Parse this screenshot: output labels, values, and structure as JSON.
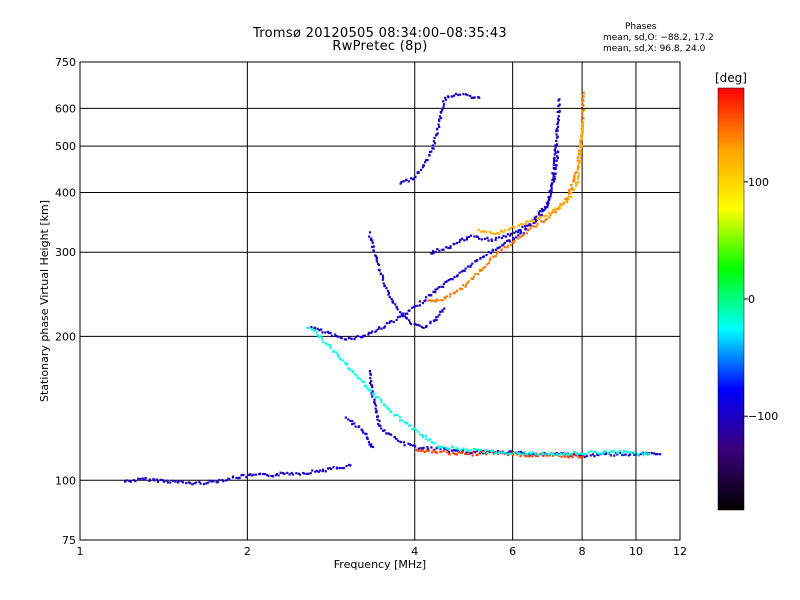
{
  "title_line1": "Tromsø 20120505 08:34:00–08:35:43",
  "title_line2": "RwPretec (8p)",
  "phases": {
    "title": "Phases",
    "line1": "mean, sd,O: −88.2, 17.2",
    "line2": "mean, sd,X:  96.8, 24.0"
  },
  "colorbar": {
    "label": "[deg]",
    "ticks": [
      "100",
      "0",
      "−100"
    ],
    "tick_values": [
      100,
      0,
      -100
    ],
    "range": [
      -180,
      180
    ],
    "colors": [
      "#000000",
      "#3a007a",
      "#0000ff",
      "#00ffff",
      "#00ff00",
      "#ffff00",
      "#ffa000",
      "#ff0000"
    ]
  },
  "chart_data": {
    "type": "scatter",
    "xlabel": "Frequency [MHz]",
    "ylabel": "Stationary phase Virtual Height [km]",
    "xscale": "log",
    "yscale": "log",
    "xlim": [
      1,
      12
    ],
    "ylim": [
      75,
      750
    ],
    "x_ticks": [
      1,
      2,
      4,
      6,
      8,
      10,
      12
    ],
    "x_tick_labels": [
      "1",
      "2",
      "4",
      "6",
      "8",
      "10",
      "12"
    ],
    "y_ticks": [
      75,
      100,
      200,
      300,
      400,
      500,
      600,
      750
    ],
    "y_tick_labels": [
      "75",
      "100",
      "200",
      "300",
      "400",
      "500",
      "600",
      "750"
    ],
    "grid": true,
    "series": [
      {
        "phase": -100,
        "points": [
          [
            1.2,
            100
          ],
          [
            1.3,
            101
          ],
          [
            1.45,
            100
          ],
          [
            1.6,
            99
          ],
          [
            1.75,
            100
          ],
          [
            1.9,
            102
          ],
          [
            2.05,
            103
          ],
          [
            2.2,
            103
          ],
          [
            2.35,
            104
          ],
          [
            2.5,
            104
          ],
          [
            2.65,
            105
          ],
          [
            2.8,
            106
          ],
          [
            2.95,
            107
          ],
          [
            3.05,
            108
          ]
        ]
      },
      {
        "phase": -100,
        "points": [
          [
            2.6,
            210
          ],
          [
            2.75,
            205
          ],
          [
            2.9,
            200
          ],
          [
            3.05,
            199
          ],
          [
            3.2,
            201
          ],
          [
            3.4,
            207
          ],
          [
            3.6,
            215
          ],
          [
            3.8,
            222
          ],
          [
            4.0,
            232
          ],
          [
            4.3,
            248
          ],
          [
            4.6,
            263
          ],
          [
            5.0,
            282
          ],
          [
            5.4,
            300
          ],
          [
            5.8,
            315
          ],
          [
            6.2,
            330
          ],
          [
            6.6,
            350
          ],
          [
            6.9,
            380
          ],
          [
            7.05,
            430
          ],
          [
            7.15,
            500
          ],
          [
            7.2,
            560
          ],
          [
            7.25,
            630
          ]
        ]
      },
      {
        "phase": -100,
        "points": [
          [
            3.3,
            330
          ],
          [
            3.5,
            260
          ],
          [
            3.7,
            230
          ],
          [
            3.9,
            215
          ],
          [
            4.1,
            210
          ],
          [
            4.3,
            215
          ],
          [
            4.5,
            230
          ]
        ]
      },
      {
        "phase": -100,
        "points": [
          [
            3.75,
            420
          ],
          [
            3.95,
            430
          ],
          [
            4.15,
            460
          ],
          [
            4.3,
            500
          ],
          [
            4.4,
            560
          ],
          [
            4.5,
            630
          ],
          [
            4.7,
            645
          ],
          [
            4.95,
            640
          ],
          [
            5.2,
            635
          ]
        ]
      },
      {
        "phase": -100,
        "points": [
          [
            4.25,
            300
          ],
          [
            4.6,
            310
          ],
          [
            5.0,
            325
          ],
          [
            5.5,
            320
          ],
          [
            6.0,
            330
          ],
          [
            6.5,
            350
          ],
          [
            6.9,
            380
          ],
          [
            7.1,
            430
          ],
          [
            7.2,
            490
          ]
        ]
      },
      {
        "phase": -100,
        "points": [
          [
            3.3,
            170
          ],
          [
            3.35,
            150
          ],
          [
            3.4,
            140
          ],
          [
            3.45,
            130
          ],
          [
            3.6,
            125
          ],
          [
            3.8,
            120
          ],
          [
            4.0,
            118
          ],
          [
            4.3,
            117
          ],
          [
            4.6,
            116
          ],
          [
            5.0,
            115
          ],
          [
            5.5,
            115
          ],
          [
            6.0,
            115
          ],
          [
            6.5,
            114
          ],
          [
            7.0,
            114
          ],
          [
            7.5,
            114
          ],
          [
            8.0,
            113
          ],
          [
            9.0,
            114
          ],
          [
            10.0,
            114
          ],
          [
            11.0,
            114
          ]
        ]
      },
      {
        "phase": -90,
        "points": [
          [
            3.0,
            135
          ],
          [
            3.15,
            130
          ],
          [
            3.25,
            125
          ],
          [
            3.3,
            120
          ],
          [
            3.35,
            118
          ]
        ]
      },
      {
        "phase": 140,
        "points": [
          [
            4.2,
            240
          ],
          [
            4.4,
            238
          ],
          [
            4.7,
            248
          ],
          [
            5.0,
            262
          ],
          [
            5.3,
            280
          ],
          [
            5.6,
            300
          ],
          [
            6.0,
            318
          ],
          [
            6.5,
            340
          ],
          [
            7.0,
            360
          ],
          [
            7.5,
            390
          ],
          [
            7.8,
            450
          ],
          [
            7.95,
            520
          ],
          [
            8.0,
            600
          ],
          [
            8.02,
            650
          ]
        ]
      },
      {
        "phase": 120,
        "points": [
          [
            5.2,
            335
          ],
          [
            5.6,
            330
          ],
          [
            6.0,
            340
          ],
          [
            6.5,
            350
          ],
          [
            7.0,
            365
          ],
          [
            7.5,
            385
          ],
          [
            7.8,
            420
          ],
          [
            7.9,
            480
          ],
          [
            7.98,
            560
          ]
        ]
      },
      {
        "phase": 160,
        "points": [
          [
            4.0,
            116
          ],
          [
            4.5,
            115
          ],
          [
            5.0,
            114
          ],
          [
            5.5,
            115
          ],
          [
            6.0,
            114
          ],
          [
            6.5,
            113
          ],
          [
            7.0,
            114
          ],
          [
            7.5,
            113
          ],
          [
            8.0,
            113
          ]
        ]
      },
      {
        "phase": -20,
        "points": [
          [
            2.55,
            210
          ],
          [
            2.65,
            205
          ],
          [
            3.6,
            140
          ],
          [
            4.4,
            118
          ],
          [
            4.8,
            117
          ],
          [
            5.6,
            115
          ],
          [
            6.8,
            114
          ],
          [
            8.5,
            115
          ],
          [
            9.5,
            115
          ],
          [
            10.5,
            114
          ]
        ]
      }
    ]
  }
}
